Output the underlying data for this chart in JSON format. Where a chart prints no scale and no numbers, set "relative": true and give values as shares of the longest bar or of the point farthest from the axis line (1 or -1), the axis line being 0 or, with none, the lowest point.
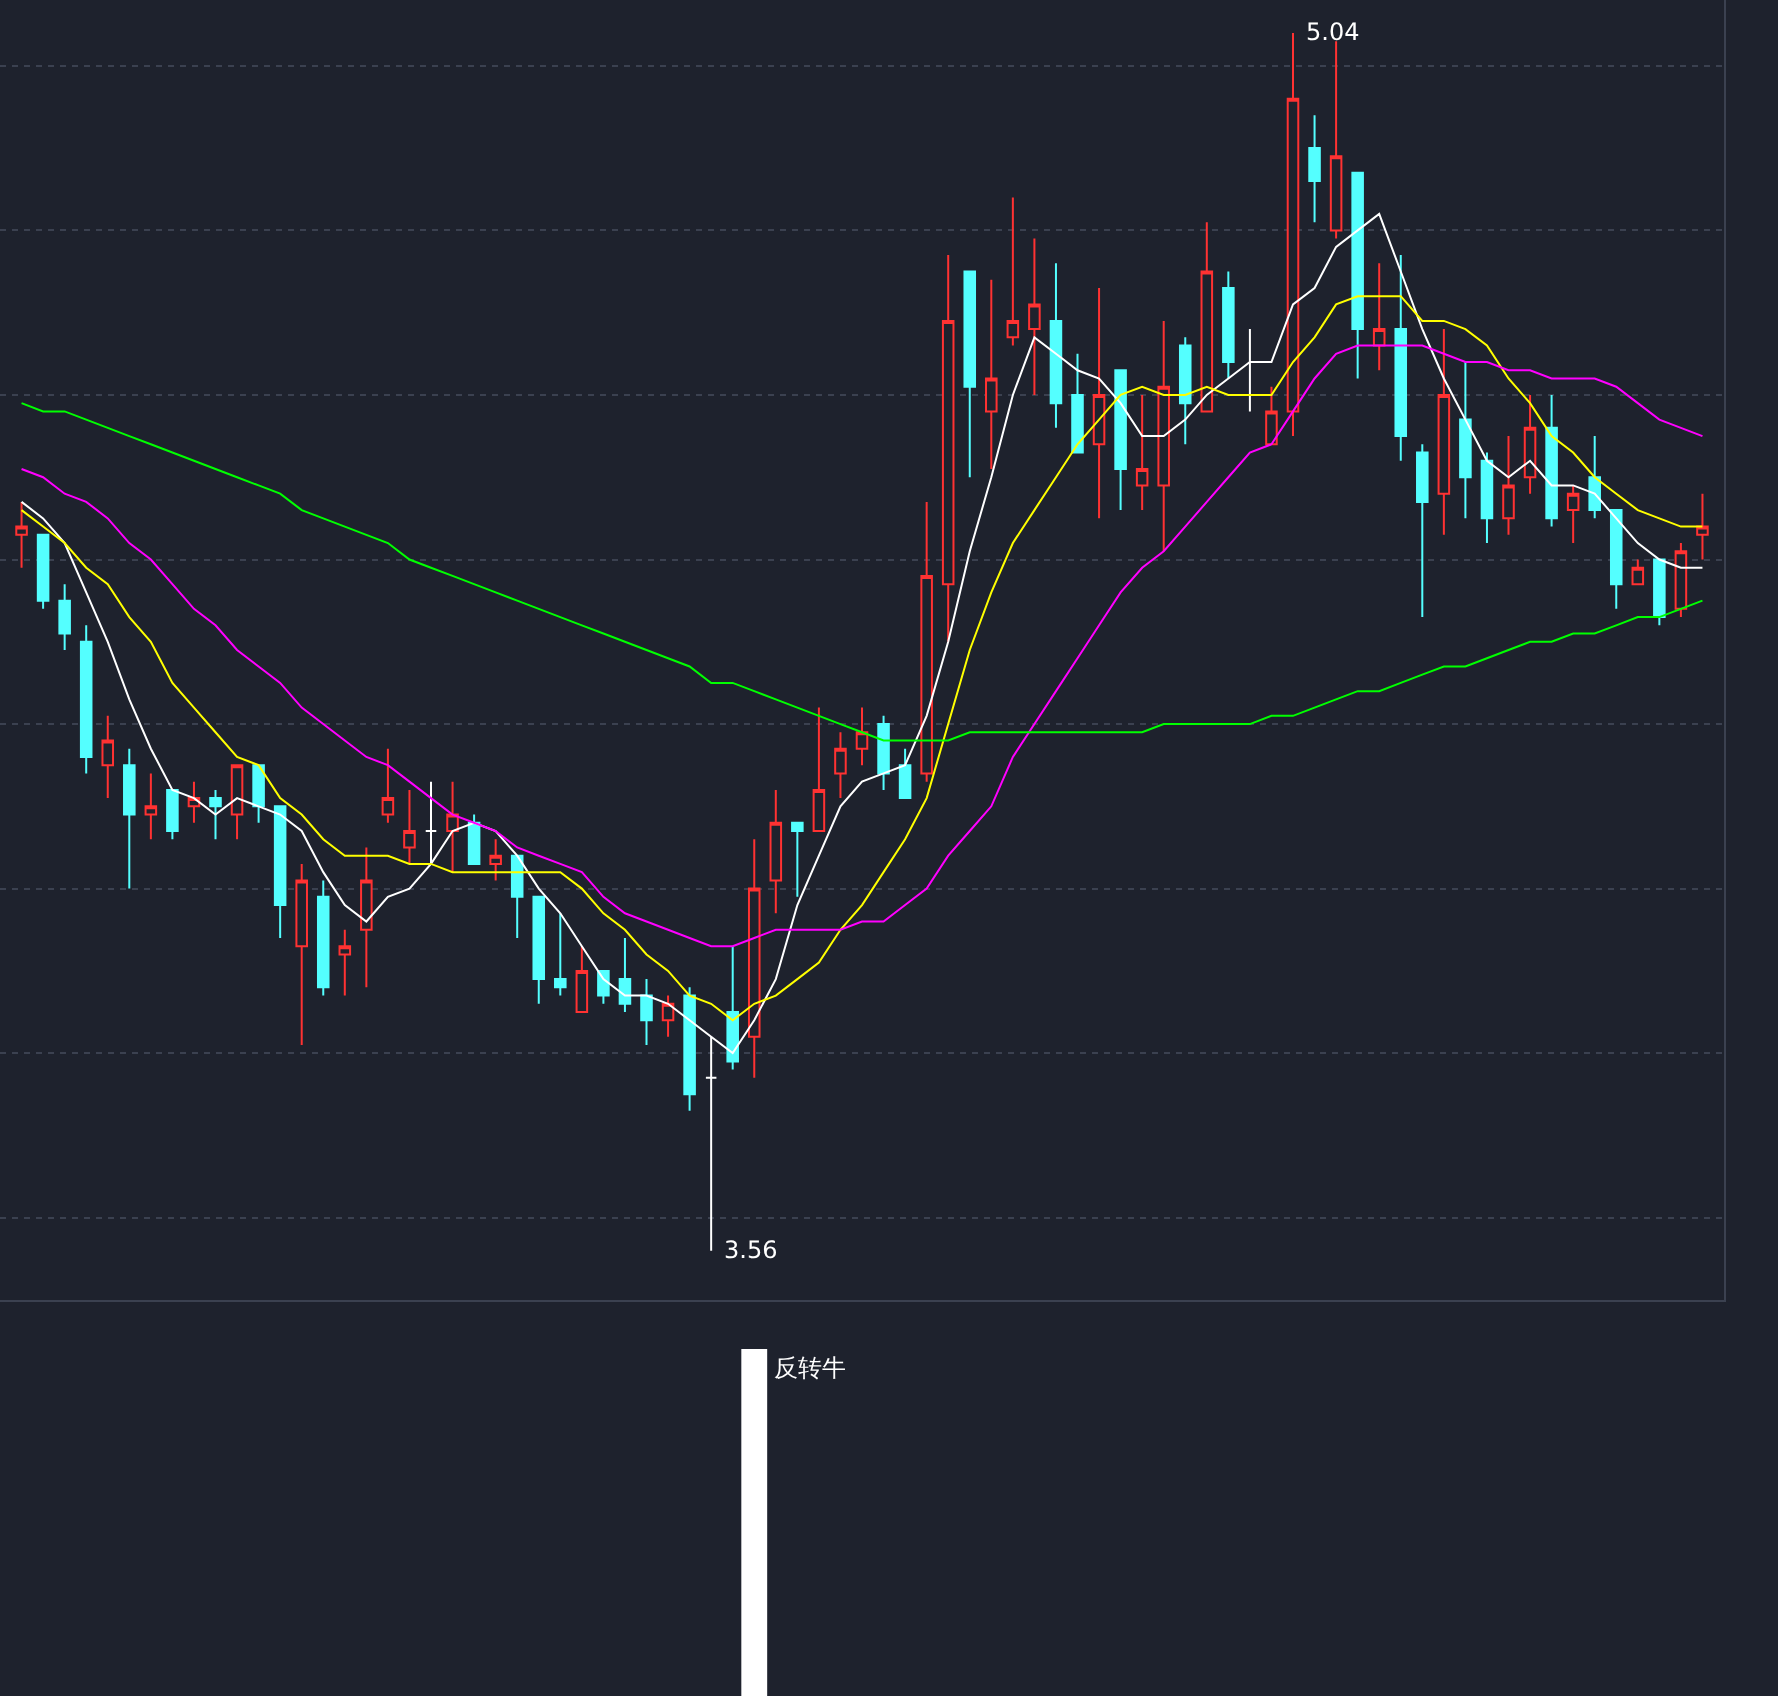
{
  "chart_data": [
    {
      "type": "candlestick",
      "categories": [
        null,
        null,
        null,
        null,
        null,
        null,
        null,
        null,
        null,
        null,
        null,
        null,
        null,
        null,
        null,
        null,
        null,
        null,
        null,
        null,
        null,
        null,
        null,
        null,
        null,
        null,
        null,
        null,
        null,
        null,
        null,
        null,
        null,
        null,
        null,
        null,
        null,
        null,
        null,
        null,
        null,
        null,
        null,
        null,
        null,
        null,
        null,
        null,
        null,
        null,
        null,
        null,
        null,
        null,
        null,
        null,
        null,
        null,
        null,
        null,
        null,
        null,
        null,
        null,
        null,
        null,
        null,
        null,
        null,
        null,
        null,
        null,
        null,
        null,
        null,
        null,
        null,
        null,
        null
      ],
      "ohlc": [
        [
          4.43,
          4.47,
          4.39,
          4.44
        ],
        [
          4.43,
          4.43,
          4.34,
          4.35
        ],
        [
          4.35,
          4.37,
          4.29,
          4.31
        ],
        [
          4.3,
          4.32,
          4.14,
          4.16
        ],
        [
          4.15,
          4.21,
          4.11,
          4.18
        ],
        [
          4.15,
          4.17,
          4.0,
          4.09
        ],
        [
          4.09,
          4.14,
          4.06,
          4.1
        ],
        [
          4.12,
          4.12,
          4.06,
          4.07
        ],
        [
          4.1,
          4.13,
          4.08,
          4.11
        ],
        [
          4.11,
          4.12,
          4.06,
          4.1
        ],
        [
          4.09,
          4.15,
          4.06,
          4.15
        ],
        [
          4.15,
          4.15,
          4.08,
          4.1
        ],
        [
          4.1,
          4.1,
          3.94,
          3.98
        ],
        [
          3.93,
          4.03,
          3.81,
          4.01
        ],
        [
          3.99,
          4.01,
          3.87,
          3.88
        ],
        [
          3.92,
          3.95,
          3.87,
          3.93
        ],
        [
          3.95,
          4.05,
          3.88,
          4.01
        ],
        [
          4.09,
          4.17,
          4.08,
          4.11
        ],
        [
          4.05,
          4.12,
          4.03,
          4.07
        ],
        [
          4.07,
          4.13,
          4.03,
          4.07
        ],
        [
          4.07,
          4.13,
          4.02,
          4.09
        ],
        [
          4.08,
          4.09,
          4.03,
          4.03
        ],
        [
          4.03,
          4.06,
          4.01,
          4.04
        ],
        [
          4.04,
          4.04,
          3.94,
          3.99
        ],
        [
          3.99,
          3.99,
          3.86,
          3.89
        ],
        [
          3.89,
          3.97,
          3.87,
          3.88
        ],
        [
          3.85,
          3.93,
          3.85,
          3.9
        ],
        [
          3.9,
          3.9,
          3.86,
          3.87
        ],
        [
          3.89,
          3.94,
          3.85,
          3.86
        ],
        [
          3.87,
          3.89,
          3.81,
          3.84
        ],
        [
          3.84,
          3.87,
          3.82,
          3.86
        ],
        [
          3.87,
          3.88,
          3.73,
          3.75
        ],
        [
          3.77,
          3.82,
          3.56,
          3.77
        ],
        [
          3.85,
          3.93,
          3.78,
          3.79
        ],
        [
          3.82,
          4.06,
          3.77,
          4.0
        ],
        [
          4.01,
          4.12,
          3.97,
          4.08
        ],
        [
          4.08,
          4.08,
          3.99,
          4.07
        ],
        [
          4.07,
          4.22,
          4.07,
          4.12
        ],
        [
          4.14,
          4.19,
          4.11,
          4.17
        ],
        [
          4.17,
          4.22,
          4.15,
          4.19
        ],
        [
          4.2,
          4.21,
          4.12,
          4.14
        ],
        [
          4.15,
          4.17,
          4.11,
          4.11
        ],
        [
          4.14,
          4.47,
          4.13,
          4.38
        ],
        [
          4.37,
          4.77,
          4.3,
          4.69
        ],
        [
          4.75,
          4.75,
          4.5,
          4.61
        ],
        [
          4.58,
          4.74,
          4.51,
          4.62
        ],
        [
          4.67,
          4.84,
          4.66,
          4.69
        ],
        [
          4.68,
          4.79,
          4.6,
          4.71
        ],
        [
          4.69,
          4.76,
          4.56,
          4.59
        ],
        [
          4.6,
          4.65,
          4.53,
          4.53
        ],
        [
          4.54,
          4.73,
          4.45,
          4.6
        ],
        [
          4.63,
          4.63,
          4.46,
          4.51
        ],
        [
          4.49,
          4.6,
          4.46,
          4.51
        ],
        [
          4.49,
          4.69,
          4.41,
          4.61
        ],
        [
          4.66,
          4.67,
          4.54,
          4.59
        ],
        [
          4.58,
          4.81,
          4.58,
          4.75
        ],
        [
          4.73,
          4.75,
          4.62,
          4.64
        ],
        [
          4.6,
          4.68,
          4.58,
          4.6
        ],
        [
          4.54,
          4.61,
          4.54,
          4.58
        ],
        [
          4.58,
          5.04,
          4.55,
          4.96
        ],
        [
          4.9,
          4.94,
          4.81,
          4.86
        ],
        [
          4.8,
          5.03,
          4.79,
          4.89
        ],
        [
          4.87,
          4.87,
          4.62,
          4.68
        ],
        [
          4.66,
          4.76,
          4.63,
          4.68
        ],
        [
          4.68,
          4.77,
          4.52,
          4.55
        ],
        [
          4.53,
          4.54,
          4.33,
          4.47
        ],
        [
          4.48,
          4.68,
          4.43,
          4.6
        ],
        [
          4.57,
          4.64,
          4.45,
          4.5
        ],
        [
          4.52,
          4.53,
          4.42,
          4.45
        ],
        [
          4.45,
          4.55,
          4.43,
          4.49
        ],
        [
          4.5,
          4.6,
          4.48,
          4.56
        ],
        [
          4.56,
          4.6,
          4.44,
          4.45
        ],
        [
          4.46,
          4.49,
          4.42,
          4.48
        ],
        [
          4.5,
          4.55,
          4.45,
          4.46
        ],
        [
          4.46,
          4.46,
          4.34,
          4.37
        ],
        [
          4.37,
          4.4,
          4.37,
          4.39
        ],
        [
          4.4,
          4.4,
          4.32,
          4.33
        ],
        [
          4.34,
          4.42,
          4.33,
          4.41
        ],
        [
          4.43,
          4.48,
          4.4,
          4.44
        ]
      ],
      "colors": [
        "#ff3232",
        "#54ffff",
        "#54ffff",
        "#54ffff",
        "#ff3232",
        "#54ffff",
        "#ff3232",
        "#54ffff",
        "#ff3232",
        "#54ffff",
        "#ff3232",
        "#54ffff",
        "#54ffff",
        "#ff3232",
        "#54ffff",
        "#ff3232",
        "#ff3232",
        "#ff3232",
        "#ff3232",
        "#ffffff",
        "#ff3232",
        "#54ffff",
        "#ff3232",
        "#54ffff",
        "#54ffff",
        "#54ffff",
        "#ff3232",
        "#54ffff",
        "#54ffff",
        "#54ffff",
        "#ff3232",
        "#54ffff",
        "#ffffff",
        "#54ffff",
        "#ff3232",
        "#ff3232",
        "#54ffff",
        "#ff3232",
        "#ff3232",
        "#ff3232",
        "#54ffff",
        "#54ffff",
        "#ff3232",
        "#ff3232",
        "#54ffff",
        "#ff3232",
        "#ff3232",
        "#ff3232",
        "#54ffff",
        "#54ffff",
        "#ff3232",
        "#54ffff",
        "#ff3232",
        "#ff3232",
        "#54ffff",
        "#ff3232",
        "#54ffff",
        "#ffffff",
        "#ff3232",
        "#ff3232",
        "#54ffff",
        "#ff3232",
        "#54ffff",
        "#ff3232",
        "#54ffff",
        "#54ffff",
        "#ff3232",
        "#54ffff",
        "#54ffff",
        "#ff3232",
        "#ff3232",
        "#54ffff",
        "#ff3232",
        "#54ffff",
        "#54ffff",
        "#ff3232",
        "#54ffff",
        "#ff3232",
        "#ff3232"
      ],
      "series": [
        {
          "type": "line",
          "color": "#ffffff",
          "values": [
            4.47,
            4.45,
            4.42,
            4.36,
            4.3,
            4.23,
            4.17,
            4.12,
            4.11,
            4.09,
            4.11,
            4.1,
            4.09,
            4.07,
            4.02,
            3.98,
            3.96,
            3.99,
            4.0,
            4.03,
            4.07,
            4.08,
            4.07,
            4.04,
            4.0,
            3.97,
            3.93,
            3.89,
            3.87,
            3.87,
            3.86,
            3.84,
            3.82,
            3.8,
            3.84,
            3.89,
            3.98,
            4.04,
            4.1,
            4.13,
            4.14,
            4.15,
            4.21,
            4.3,
            4.41,
            4.5,
            4.6,
            4.67,
            4.65,
            4.63,
            4.62,
            4.59,
            4.55,
            4.55,
            4.57,
            4.6,
            4.62,
            4.64,
            4.64,
            4.71,
            4.73,
            4.78,
            4.8,
            4.82,
            4.75,
            4.68,
            4.62,
            4.57,
            4.52,
            4.5,
            4.52,
            4.49,
            4.49,
            4.48,
            4.45,
            4.42,
            4.4,
            4.39,
            4.39
          ]
        },
        {
          "type": "line",
          "color": "#ffff00",
          "values": [
            4.46,
            4.44,
            4.42,
            4.39,
            4.37,
            4.33,
            4.3,
            4.25,
            4.22,
            4.19,
            4.16,
            4.15,
            4.11,
            4.09,
            4.06,
            4.04,
            4.04,
            4.04,
            4.03,
            4.03,
            4.02,
            4.02,
            4.02,
            4.02,
            4.02,
            4.02,
            4.0,
            3.97,
            3.95,
            3.92,
            3.9,
            3.87,
            3.86,
            3.84,
            3.86,
            3.87,
            3.89,
            3.91,
            3.95,
            3.98,
            4.02,
            4.06,
            4.11,
            4.2,
            4.29,
            4.36,
            4.42,
            4.46,
            4.5,
            4.54,
            4.57,
            4.6,
            4.61,
            4.6,
            4.6,
            4.61,
            4.6,
            4.6,
            4.6,
            4.64,
            4.67,
            4.71,
            4.72,
            4.72,
            4.72,
            4.69,
            4.69,
            4.68,
            4.66,
            4.62,
            4.59,
            4.55,
            4.53,
            4.5,
            4.48,
            4.46,
            4.45,
            4.44,
            4.44
          ]
        },
        {
          "type": "line",
          "color": "#ff00ff",
          "values": [
            4.51,
            4.5,
            4.48,
            4.47,
            4.45,
            4.42,
            4.4,
            4.37,
            4.34,
            4.32,
            4.29,
            4.27,
            4.25,
            4.22,
            4.2,
            4.18,
            4.16,
            4.15,
            4.13,
            4.11,
            4.09,
            4.08,
            4.07,
            4.05,
            4.04,
            4.03,
            4.02,
            3.99,
            3.97,
            3.96,
            3.95,
            3.94,
            3.93,
            3.93,
            3.94,
            3.95,
            3.95,
            3.95,
            3.95,
            3.96,
            3.96,
            3.98,
            4.0,
            4.04,
            4.07,
            4.1,
            4.16,
            4.2,
            4.24,
            4.28,
            4.32,
            4.36,
            4.39,
            4.41,
            4.44,
            4.47,
            4.5,
            4.53,
            4.54,
            4.58,
            4.62,
            4.65,
            4.66,
            4.66,
            4.66,
            4.66,
            4.65,
            4.64,
            4.64,
            4.63,
            4.63,
            4.62,
            4.62,
            4.62,
            4.61,
            4.59,
            4.57,
            4.56,
            4.55
          ]
        },
        {
          "type": "line",
          "color": "#00ff00",
          "values": [
            4.59,
            4.58,
            4.58,
            4.57,
            4.56,
            4.55,
            4.54,
            4.53,
            4.52,
            4.51,
            4.5,
            4.49,
            4.48,
            4.46,
            4.45,
            4.44,
            4.43,
            4.42,
            4.4,
            4.39,
            4.38,
            4.37,
            4.36,
            4.35,
            4.34,
            4.33,
            4.32,
            4.31,
            4.3,
            4.29,
            4.28,
            4.27,
            4.25,
            4.25,
            4.24,
            4.23,
            4.22,
            4.21,
            4.2,
            4.19,
            4.18,
            4.18,
            4.18,
            4.18,
            4.19,
            4.19,
            4.19,
            4.19,
            4.19,
            4.19,
            4.19,
            4.19,
            4.19,
            4.2,
            4.2,
            4.2,
            4.2,
            4.2,
            4.21,
            4.21,
            4.22,
            4.23,
            4.24,
            4.24,
            4.25,
            4.26,
            4.27,
            4.27,
            4.28,
            4.29,
            4.3,
            4.3,
            4.31,
            4.31,
            4.32,
            4.33,
            4.33,
            4.34,
            4.35
          ]
        }
      ],
      "ylim": [
        3.5,
        5.08
      ],
      "yticks": [
        {
          "value": 3.6,
          "label": null
        },
        {
          "value": 3.8,
          "label": null
        },
        {
          "value": 4.0,
          "label": null
        },
        {
          "value": 4.2,
          "label": null
        },
        {
          "value": 4.4,
          "label": null
        },
        {
          "value": 4.6,
          "label": null
        },
        {
          "value": 4.8,
          "label": null
        },
        {
          "value": 5.0,
          "label": null
        }
      ],
      "grid": "y",
      "annotations": [
        "5.04",
        "3.56"
      ]
    },
    {
      "type": "bar",
      "relative": true,
      "categories": [
        null,
        null,
        null,
        null,
        null,
        null,
        null,
        null,
        null,
        null,
        null,
        null,
        null,
        null,
        null,
        null,
        null,
        null,
        null,
        null,
        null,
        null,
        null,
        null,
        null,
        null,
        null,
        null,
        null,
        null,
        null,
        null,
        null,
        null,
        null,
        null,
        null,
        null,
        null,
        null,
        null,
        null,
        null,
        null,
        null,
        null,
        null,
        null,
        null,
        null,
        null,
        null,
        null,
        null,
        null,
        null,
        null,
        null,
        null,
        null,
        null,
        null,
        null,
        null,
        null,
        null,
        null,
        null,
        null,
        null,
        null,
        null,
        null,
        null,
        null,
        null,
        null,
        null,
        null
      ],
      "values": [
        null,
        null,
        null,
        null,
        null,
        null,
        null,
        null,
        null,
        null,
        null,
        null,
        null,
        null,
        null,
        null,
        null,
        null,
        null,
        null,
        null,
        null,
        null,
        null,
        null,
        null,
        null,
        null,
        null,
        null,
        null,
        null,
        null,
        null,
        1,
        null,
        null,
        null,
        null,
        null,
        null,
        null,
        null,
        null,
        null,
        null,
        null,
        null,
        null,
        null,
        null,
        null,
        null,
        null,
        null,
        null,
        null,
        null,
        null,
        null,
        null,
        null,
        null,
        null,
        null,
        null,
        null,
        null,
        null,
        null,
        null,
        null,
        null,
        null,
        null,
        null,
        null,
        null,
        null
      ],
      "annotations": [
        "反转牛"
      ],
      "color": "#ffffff"
    }
  ]
}
